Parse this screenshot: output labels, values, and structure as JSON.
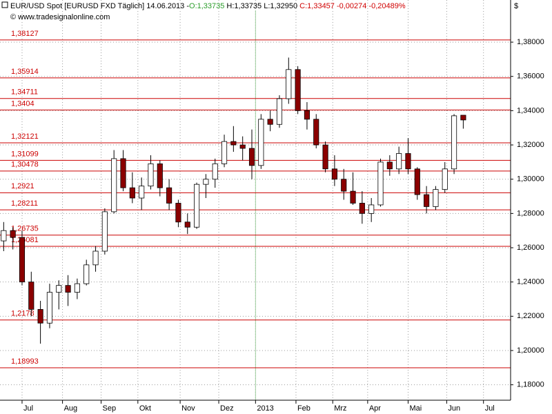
{
  "chart_data": {
    "type": "candlestick",
    "header": {
      "symbol": "EUR/USD Spot [EURUSD FXD  Täglich] 14.06.2013 -",
      "open": "O:1,33735",
      "hl": "H:1,33735 L:1,32950",
      "close": "C:1,33457 -0,00274 -0,20489%"
    },
    "copyright": "© www.tradesignalonline.com",
    "currency": "$",
    "up_color": "#ffffff",
    "down_color": "#8b0000",
    "level_color": "#cc0000",
    "marker_color": "#9ccc9c",
    "grid": true,
    "x": [
      0,
      5,
      10,
      15,
      20,
      25,
      30,
      35,
      40,
      45,
      50,
      55,
      60,
      65,
      70,
      75,
      80,
      85,
      90,
      95,
      100,
      105,
      110,
      115,
      120,
      125,
      130,
      135,
      140,
      145,
      150,
      155,
      160,
      165,
      170,
      175,
      180,
      185,
      190,
      195,
      200,
      205,
      210,
      215,
      220,
      225,
      230,
      235,
      240,
      245,
      250
    ],
    "open": [
      1.264,
      1.27,
      1.266,
      1.24,
      1.224,
      1.216,
      1.234,
      1.238,
      1.234,
      1.239,
      1.25,
      1.258,
      1.281,
      1.312,
      1.295,
      1.289,
      1.296,
      1.309,
      1.295,
      1.286,
      1.275,
      1.272,
      1.297,
      1.3,
      1.309,
      1.322,
      1.32,
      1.318,
      1.308,
      1.335,
      1.332,
      1.347,
      1.364,
      1.34,
      1.335,
      1.32,
      1.306,
      1.3,
      1.293,
      1.286,
      1.28,
      1.285,
      1.31,
      1.306,
      1.315,
      1.306,
      1.291,
      1.284,
      1.294,
      1.306,
      1.33735
    ],
    "high": [
      1.275,
      1.272,
      1.27,
      1.246,
      1.229,
      1.239,
      1.241,
      1.244,
      1.242,
      1.253,
      1.261,
      1.283,
      1.317,
      1.317,
      1.304,
      1.301,
      1.314,
      1.311,
      1.3,
      1.288,
      1.28,
      1.298,
      1.303,
      1.312,
      1.326,
      1.331,
      1.325,
      1.329,
      1.338,
      1.34,
      1.349,
      1.371,
      1.366,
      1.345,
      1.338,
      1.322,
      1.314,
      1.306,
      1.304,
      1.293,
      1.289,
      1.312,
      1.314,
      1.319,
      1.324,
      1.307,
      1.296,
      1.296,
      1.31,
      1.338,
      1.33735
    ],
    "low": [
      1.258,
      1.259,
      1.238,
      1.22,
      1.204,
      1.213,
      1.224,
      1.226,
      1.23,
      1.238,
      1.246,
      1.256,
      1.28,
      1.293,
      1.286,
      1.282,
      1.294,
      1.29,
      1.282,
      1.272,
      1.268,
      1.271,
      1.289,
      1.295,
      1.307,
      1.316,
      1.311,
      1.3,
      1.306,
      1.328,
      1.33,
      1.344,
      1.338,
      1.329,
      1.318,
      1.304,
      1.296,
      1.288,
      1.285,
      1.274,
      1.275,
      1.284,
      1.302,
      1.303,
      1.303,
      1.288,
      1.28,
      1.282,
      1.292,
      1.303,
      1.3295
    ],
    "close": [
      1.27,
      1.266,
      1.24,
      1.224,
      1.216,
      1.234,
      1.238,
      1.234,
      1.239,
      1.25,
      1.258,
      1.281,
      1.312,
      1.295,
      1.289,
      1.296,
      1.309,
      1.295,
      1.286,
      1.275,
      1.272,
      1.297,
      1.3,
      1.309,
      1.322,
      1.32,
      1.318,
      1.308,
      1.335,
      1.332,
      1.347,
      1.364,
      1.34,
      1.335,
      1.32,
      1.306,
      1.3,
      1.293,
      1.286,
      1.28,
      1.285,
      1.31,
      1.306,
      1.315,
      1.306,
      1.291,
      1.284,
      1.294,
      1.306,
      1.337,
      1.33457
    ],
    "xlim": [
      -2,
      275
    ],
    "xticks": [
      {
        "value": 10,
        "label": "Jul"
      },
      {
        "value": 32,
        "label": "Aug"
      },
      {
        "value": 53,
        "label": "Sep"
      },
      {
        "value": 73,
        "label": "Okt"
      },
      {
        "value": 96,
        "label": "Nov"
      },
      {
        "value": 117,
        "label": "Dez"
      },
      {
        "value": 137,
        "label": "2013"
      },
      {
        "value": 159,
        "label": "Feb"
      },
      {
        "value": 179,
        "label": "Mrz"
      },
      {
        "value": 198,
        "label": "Apr"
      },
      {
        "value": 220,
        "label": "Mai"
      },
      {
        "value": 241,
        "label": "Jun"
      },
      {
        "value": 261,
        "label": "Jul"
      }
    ],
    "year_marker": 137,
    "ylim": [
      1.171,
      1.4046
    ],
    "yticks": [
      {
        "value": 1.18,
        "label": "1,18000"
      },
      {
        "value": 1.2,
        "label": "1,20000"
      },
      {
        "value": 1.22,
        "label": "1,22000"
      },
      {
        "value": 1.24,
        "label": "1,24000"
      },
      {
        "value": 1.26,
        "label": "1,26000"
      },
      {
        "value": 1.28,
        "label": "1,28000"
      },
      {
        "value": 1.3,
        "label": "1,30000"
      },
      {
        "value": 1.32,
        "label": "1,32000"
      },
      {
        "value": 1.34,
        "label": "1,34000"
      },
      {
        "value": 1.36,
        "label": "1,36000"
      },
      {
        "value": 1.38,
        "label": "1,38000"
      }
    ],
    "levels": [
      {
        "value": 1.38127,
        "label": "1,38127"
      },
      {
        "value": 1.35914,
        "label": "1,35914"
      },
      {
        "value": 1.34711,
        "label": "1,34711"
      },
      {
        "value": 1.3404,
        "label": "1,3404"
      },
      {
        "value": 1.32121,
        "label": "1,32121"
      },
      {
        "value": 1.31099,
        "label": "1,31099"
      },
      {
        "value": 1.30478,
        "label": "1,30478"
      },
      {
        "value": 1.2921,
        "label": "1,2921"
      },
      {
        "value": 1.28211,
        "label": "1,28211"
      },
      {
        "value": 1.26735,
        "label": "1,26735"
      },
      {
        "value": 1.26081,
        "label": "1,26081"
      },
      {
        "value": 1.2178,
        "label": "1,2178"
      },
      {
        "value": 1.18993,
        "label": "1,18993"
      }
    ]
  }
}
